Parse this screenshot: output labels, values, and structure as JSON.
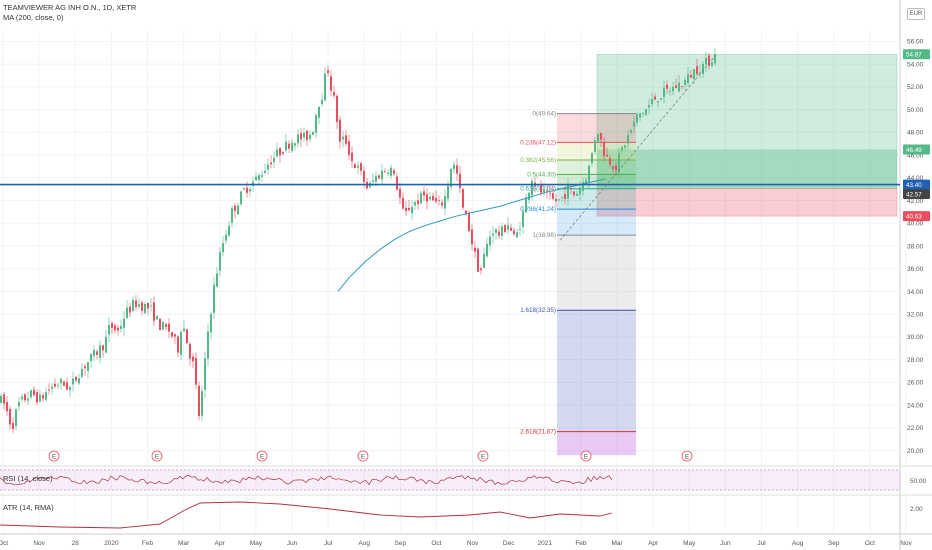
{
  "header": {
    "symbol_title": "TEAMVIEWER AG INH O.N., 1D, XETR",
    "ma_label": "MA (200, close, 0)",
    "currency": "EUR",
    "rsi_label": "RSI (14, close)",
    "atr_label": "ATR (14, RMA)"
  },
  "colors": {
    "up": "#53b987",
    "down": "#eb4d5c",
    "ma": "#2f9ab8",
    "hline": "#1e60b4",
    "rsi": "#b0303e",
    "atr": "#b0303e"
  },
  "chart_data": {
    "type": "candlestick",
    "price_axis": {
      "ylim": [
        19.0,
        57.0
      ],
      "ticks": [
        "56.00",
        "54.00",
        "52.00",
        "50.00",
        "48.00",
        "46.00",
        "44.00",
        "42.00",
        "40.00",
        "38.00",
        "36.00",
        "34.00",
        "32.00",
        "30.00",
        "28.00",
        "26.00",
        "24.00",
        "22.00",
        "20.00"
      ]
    },
    "time_axis": [
      "Oct",
      "Nov",
      "28",
      "2020",
      "Feb",
      "Mar",
      "Apr",
      "May",
      "Jun",
      "Jul",
      "Aug",
      "Sep",
      "Oct",
      "Nov",
      "Dec",
      "2021",
      "Feb",
      "Mar",
      "Apr",
      "May",
      "Jun",
      "Jul",
      "Aug",
      "Sep",
      "Oct",
      "Nov"
    ],
    "trajectory": [
      [
        0,
        24.5
      ],
      [
        5,
        24.0
      ],
      [
        12,
        22.0
      ],
      [
        18,
        24.0
      ],
      [
        25,
        24.6
      ],
      [
        32,
        25.0
      ],
      [
        40,
        24.5
      ],
      [
        50,
        25.5
      ],
      [
        60,
        26.0
      ],
      [
        70,
        25.5
      ],
      [
        80,
        27.0
      ],
      [
        95,
        28.5
      ],
      [
        105,
        29.5
      ],
      [
        110,
        31.0
      ],
      [
        118,
        30.5
      ],
      [
        125,
        32.0
      ],
      [
        135,
        33.0
      ],
      [
        150,
        32.5
      ],
      [
        160,
        31.0
      ],
      [
        170,
        30.5
      ],
      [
        178,
        29.0
      ],
      [
        182,
        31.5
      ],
      [
        190,
        28.5
      ],
      [
        195,
        27.0
      ],
      [
        198,
        22.5
      ],
      [
        202,
        25.0
      ],
      [
        208,
        30.5
      ],
      [
        215,
        35.0
      ],
      [
        222,
        38.0
      ],
      [
        232,
        41.0
      ],
      [
        245,
        43.0
      ],
      [
        258,
        44.0
      ],
      [
        270,
        45.5
      ],
      [
        282,
        46.5
      ],
      [
        295,
        47.5
      ],
      [
        305,
        47.5
      ],
      [
        312,
        48.0
      ],
      [
        318,
        50.5
      ],
      [
        323,
        51.5
      ],
      [
        327,
        54.0
      ],
      [
        331,
        52.0
      ],
      [
        335,
        50.5
      ],
      [
        340,
        47.0
      ],
      [
        345,
        47.5
      ],
      [
        352,
        45.5
      ],
      [
        360,
        44.5
      ],
      [
        368,
        43.0
      ],
      [
        375,
        44.0
      ],
      [
        382,
        44.5
      ],
      [
        390,
        45.0
      ],
      [
        398,
        43.0
      ],
      [
        404,
        40.5
      ],
      [
        410,
        41.5
      ],
      [
        418,
        42.0
      ],
      [
        425,
        42.5
      ],
      [
        432,
        42.0
      ],
      [
        440,
        41.5
      ],
      [
        446,
        42.5
      ],
      [
        452,
        45.5
      ],
      [
        458,
        44.0
      ],
      [
        462,
        41.5
      ],
      [
        468,
        40.0
      ],
      [
        474,
        37.5
      ],
      [
        480,
        35.5
      ],
      [
        485,
        37.5
      ],
      [
        492,
        39.5
      ],
      [
        500,
        39.0
      ],
      [
        508,
        40.0
      ],
      [
        515,
        38.5
      ],
      [
        522,
        40.5
      ],
      [
        527,
        42.5
      ],
      [
        532,
        44.0
      ],
      [
        538,
        43.0
      ],
      [
        545,
        42.5
      ],
      [
        552,
        42.0
      ],
      [
        560,
        42.0
      ],
      [
        568,
        43.0
      ],
      [
        575,
        42.5
      ],
      [
        582,
        43.5
      ],
      [
        588,
        44.5
      ],
      [
        593,
        46.5
      ],
      [
        597,
        48.5
      ],
      [
        600,
        47.5
      ],
      [
        605,
        46.0
      ],
      [
        610,
        45.5
      ],
      [
        616,
        45.0
      ],
      [
        622,
        46.5
      ],
      [
        630,
        48.0
      ],
      [
        638,
        49.5
      ],
      [
        646,
        50.0
      ],
      [
        655,
        51.0
      ],
      [
        665,
        51.5
      ],
      [
        675,
        52.0
      ],
      [
        685,
        52.5
      ],
      [
        695,
        53.5
      ],
      [
        705,
        54.0
      ],
      [
        716,
        54.8
      ]
    ],
    "moving_average_200": [
      [
        338,
        34.0
      ],
      [
        350,
        35.3
      ],
      [
        365,
        36.6
      ],
      [
        380,
        37.7
      ],
      [
        395,
        38.6
      ],
      [
        410,
        39.3
      ],
      [
        425,
        39.8
      ],
      [
        440,
        40.2
      ],
      [
        455,
        40.6
      ],
      [
        470,
        40.9
      ],
      [
        485,
        41.2
      ],
      [
        500,
        41.5
      ],
      [
        515,
        41.9
      ],
      [
        530,
        42.3
      ],
      [
        545,
        42.7
      ],
      [
        560,
        43.0
      ],
      [
        575,
        43.3
      ],
      [
        590,
        43.6
      ],
      [
        605,
        43.9
      ]
    ],
    "horizontal_level": 43.4,
    "fibonacci_retracement": {
      "levels": [
        {
          "label": "0(49.64)",
          "value": 49.64,
          "color": "#888888"
        },
        {
          "label": "0.236(47.12)",
          "value": 47.12,
          "color": "#eb4d5c"
        },
        {
          "label": "0.382(45.56)",
          "value": 45.56,
          "color": "#7cb342"
        },
        {
          "label": "0.5(44.30)",
          "value": 44.3,
          "color": "#4caf50"
        },
        {
          "label": "0.618(43.04)",
          "value": 43.04,
          "color": "#26a69a"
        },
        {
          "label": "0.786(41.24)",
          "value": 41.24,
          "color": "#1e88e5"
        },
        {
          "label": "1(38.96)",
          "value": 38.96,
          "color": "#888888"
        },
        {
          "label": "1.618(32.35)",
          "value": 32.35,
          "color": "#3f51b5"
        },
        {
          "label": "2.618(21.67)",
          "value": 21.67,
          "color": "#d32f2f"
        }
      ]
    },
    "long_position": {
      "target": 54.87,
      "entry": 43.04,
      "stop": 40.63,
      "target_label": "54.87",
      "stop_label": "40.63"
    },
    "price_badges": [
      {
        "label": "54.87",
        "value": 54.87,
        "color": "#53b987"
      },
      {
        "label": "46.49",
        "value": 46.49,
        "color": "#53b987"
      },
      {
        "label": "43.40",
        "value": 43.4,
        "color": "#1e60b4"
      },
      {
        "label": "42.57",
        "value": 42.57,
        "color": "#444444"
      },
      {
        "label": "40.63",
        "value": 40.63,
        "color": "#eb4d5c"
      }
    ],
    "earnings_marker": "E",
    "rsi": {
      "axis_ticks": [
        "50.00"
      ],
      "ylim": [
        0,
        100
      ]
    },
    "atr": {
      "axis_ticks": [
        "2.00"
      ],
      "ylim": [
        0,
        4
      ]
    }
  }
}
